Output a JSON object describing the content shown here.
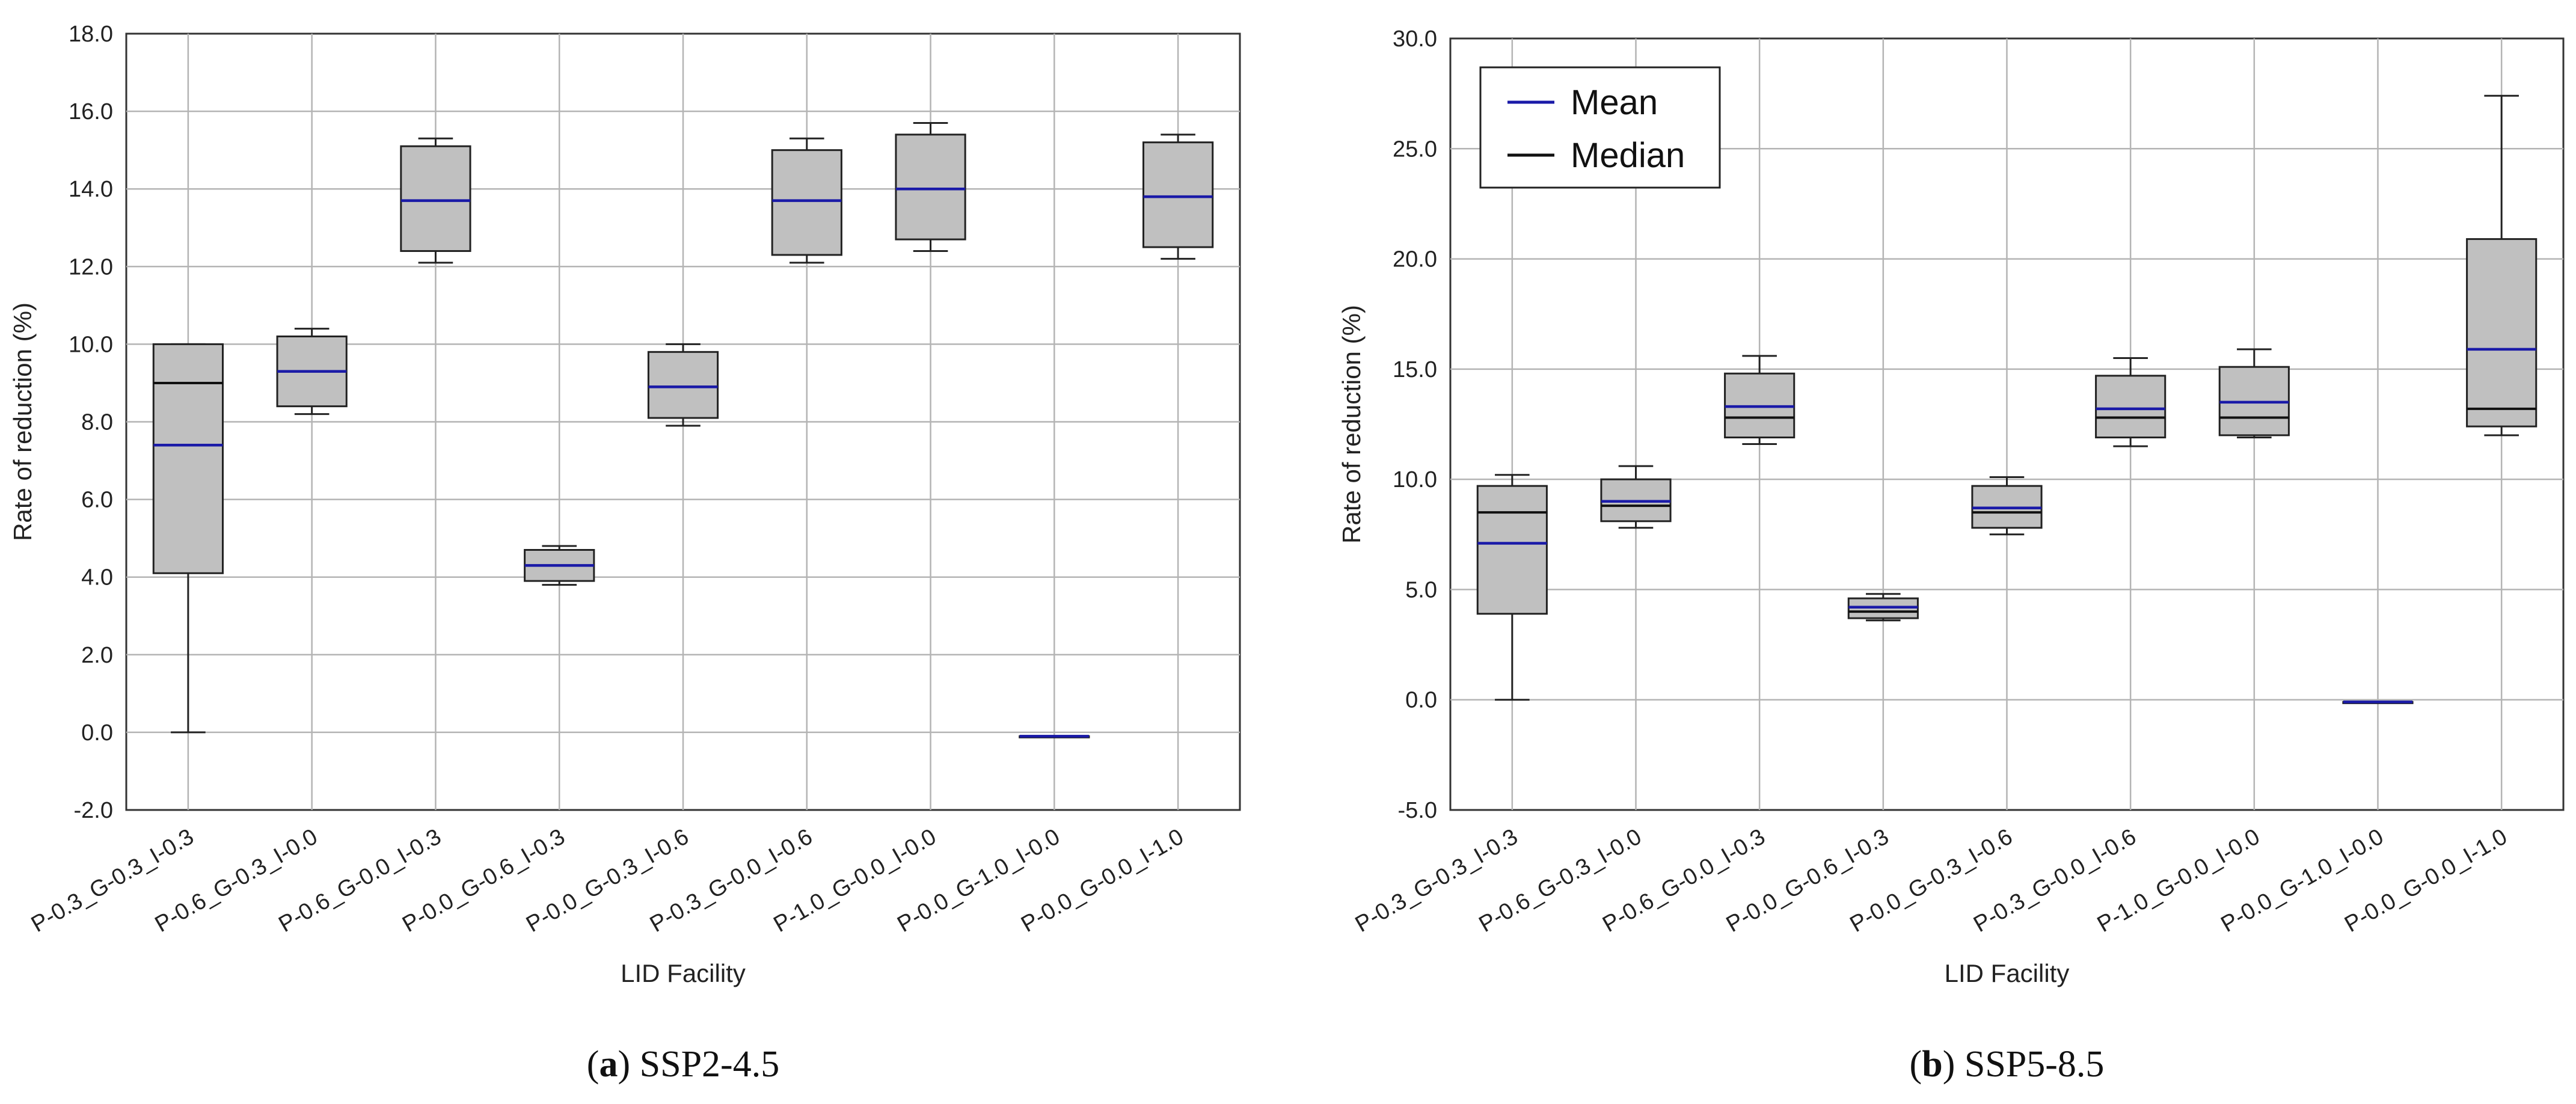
{
  "chart_data": [
    {
      "type": "box",
      "panel_label": "a",
      "caption": "SSP2-4.5",
      "xlabel": "LID Facility",
      "ylabel": "Rate of reduction (%)",
      "ylim": [
        -2.0,
        18.0
      ],
      "yticks": [
        -2.0,
        0.0,
        2.0,
        4.0,
        6.0,
        8.0,
        10.0,
        12.0,
        14.0,
        16.0,
        18.0
      ],
      "ytick_labels": [
        "-2.0",
        "0.0",
        "2.0",
        "4.0",
        "6.0",
        "8.0",
        "10.0",
        "12.0",
        "14.0",
        "16.0",
        "18.0"
      ],
      "grid": true,
      "categories": [
        "P-0.3_G-0.3_I-0.3",
        "P-0.6_G-0.3_I-0.0",
        "P-0.6_G-0.0_I-0.3",
        "P-0.0_G-0.6_I-0.3",
        "P-0.0_G-0.3_I-0.6",
        "P-0.3_G-0.0_I-0.6",
        "P-1.0_G-0.0_I-0.0",
        "P-0.0_G-1.0_I-0.0",
        "P-0.0_G-0.0_I-1.0"
      ],
      "boxes": [
        {
          "min": 0.0,
          "q1": 4.1,
          "median": 9.0,
          "q3": 10.0,
          "max": 10.0,
          "mean": 7.4
        },
        {
          "min": 8.2,
          "q1": 8.4,
          "median": 9.3,
          "q3": 10.2,
          "max": 10.4,
          "mean": 9.3
        },
        {
          "min": 12.1,
          "q1": 12.4,
          "median": 13.7,
          "q3": 15.1,
          "max": 15.3,
          "mean": 13.7
        },
        {
          "min": 3.8,
          "q1": 3.9,
          "median": 4.3,
          "q3": 4.7,
          "max": 4.8,
          "mean": 4.3
        },
        {
          "min": 7.9,
          "q1": 8.1,
          "median": 8.9,
          "q3": 9.8,
          "max": 10.0,
          "mean": 8.9
        },
        {
          "min": 12.1,
          "q1": 12.3,
          "median": 13.7,
          "q3": 15.0,
          "max": 15.3,
          "mean": 13.7
        },
        {
          "min": 12.4,
          "q1": 12.7,
          "median": 14.0,
          "q3": 15.4,
          "max": 15.7,
          "mean": 14.0
        },
        {
          "min": -0.1,
          "q1": -0.1,
          "median": -0.1,
          "q3": -0.1,
          "max": -0.1,
          "mean": -0.1
        },
        {
          "min": 12.2,
          "q1": 12.5,
          "median": 13.8,
          "q3": 15.2,
          "max": 15.4,
          "mean": 13.8
        }
      ],
      "legend": null
    },
    {
      "type": "box",
      "panel_label": "b",
      "caption": "SSP5-8.5",
      "xlabel": "LID Facility",
      "ylabel": "Rate of reduction (%)",
      "ylim": [
        -5.0,
        30.0
      ],
      "yticks": [
        -5.0,
        0.0,
        5.0,
        10.0,
        15.0,
        20.0,
        25.0,
        30.0
      ],
      "ytick_labels": [
        "-5.0",
        "0.0",
        "5.0",
        "10.0",
        "15.0",
        "20.0",
        "25.0",
        "30.0"
      ],
      "grid": true,
      "categories": [
        "P-0.3_G-0.3_I-0.3",
        "P-0.6_G-0.3_I-0.0",
        "P-0.6_G-0.0_I-0.3",
        "P-0.0_G-0.6_I-0.3",
        "P-0.0_G-0.3_I-0.6",
        "P-0.3_G-0.0_I-0.6",
        "P-1.0_G-0.0_I-0.0",
        "P-0.0_G-1.0_I-0.0",
        "P-0.0_G-0.0_I-1.0"
      ],
      "boxes": [
        {
          "min": 0.0,
          "q1": 3.9,
          "median": 8.5,
          "q3": 9.7,
          "max": 10.2,
          "mean": 7.1
        },
        {
          "min": 7.8,
          "q1": 8.1,
          "median": 8.8,
          "q3": 10.0,
          "max": 10.6,
          "mean": 9.0
        },
        {
          "min": 11.6,
          "q1": 11.9,
          "median": 12.8,
          "q3": 14.8,
          "max": 15.6,
          "mean": 13.3
        },
        {
          "min": 3.6,
          "q1": 3.7,
          "median": 4.0,
          "q3": 4.6,
          "max": 4.8,
          "mean": 4.2
        },
        {
          "min": 7.5,
          "q1": 7.8,
          "median": 8.5,
          "q3": 9.7,
          "max": 10.1,
          "mean": 8.7
        },
        {
          "min": 11.5,
          "q1": 11.9,
          "median": 12.8,
          "q3": 14.7,
          "max": 15.5,
          "mean": 13.2
        },
        {
          "min": 11.9,
          "q1": 12.0,
          "median": 12.8,
          "q3": 15.1,
          "max": 15.9,
          "mean": 13.5
        },
        {
          "min": -0.1,
          "q1": -0.1,
          "median": -0.1,
          "q3": -0.1,
          "max": -0.1,
          "mean": -0.1
        },
        {
          "min": 12.0,
          "q1": 12.4,
          "median": 13.2,
          "q3": 20.9,
          "max": 27.4,
          "mean": 15.9
        }
      ],
      "legend": {
        "position": "top-left",
        "entries": [
          {
            "label": "Mean",
            "color": "#1a1aa8"
          },
          {
            "label": "Median",
            "color": "#111111"
          }
        ]
      }
    }
  ],
  "colors": {
    "box_fill": "#c0c0c0",
    "mean_line": "#1a1aa8",
    "median_line": "#111111",
    "grid": "#b4b4b4",
    "frame": "#333333"
  }
}
